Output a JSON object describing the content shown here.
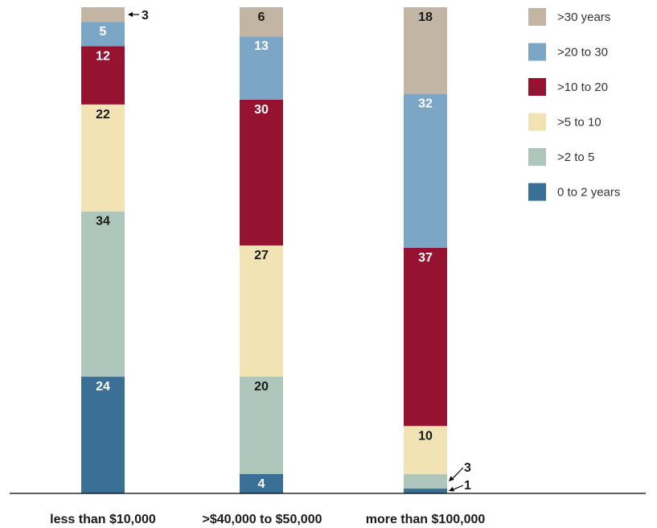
{
  "chart_data": {
    "type": "bar",
    "stacked": true,
    "normalized": true,
    "categories": [
      "less than $10,000",
      ">$40,000 to $50,000",
      "more than $100,000"
    ],
    "series": [
      {
        "name": "0 to 2 years",
        "color": "#3a6f96",
        "values": [
          24,
          4,
          1
        ]
      },
      {
        "name": ">2 to 5",
        "color": "#afc6bd",
        "values": [
          34,
          20,
          3
        ]
      },
      {
        "name": ">5 to 10",
        "color": "#f1e3b3",
        "values": [
          22,
          27,
          10
        ]
      },
      {
        "name": ">10 to 20",
        "color": "#951331",
        "values": [
          12,
          30,
          37
        ]
      },
      {
        "name": ">20 to 30",
        "color": "#7ca6c6",
        "values": [
          5,
          13,
          32
        ]
      },
      {
        "name": ">30 years",
        "color": "#c2b5a3",
        "values": [
          3,
          6,
          18
        ]
      }
    ],
    "legend_order": [
      ">30 years",
      ">20 to 30",
      ">10 to 20",
      ">5 to 10",
      ">2 to 5",
      "0 to 2 years"
    ],
    "legend_position": "top-right",
    "ylim": [
      0,
      100
    ],
    "grid": false,
    "xlabel": "",
    "ylabel": ""
  }
}
